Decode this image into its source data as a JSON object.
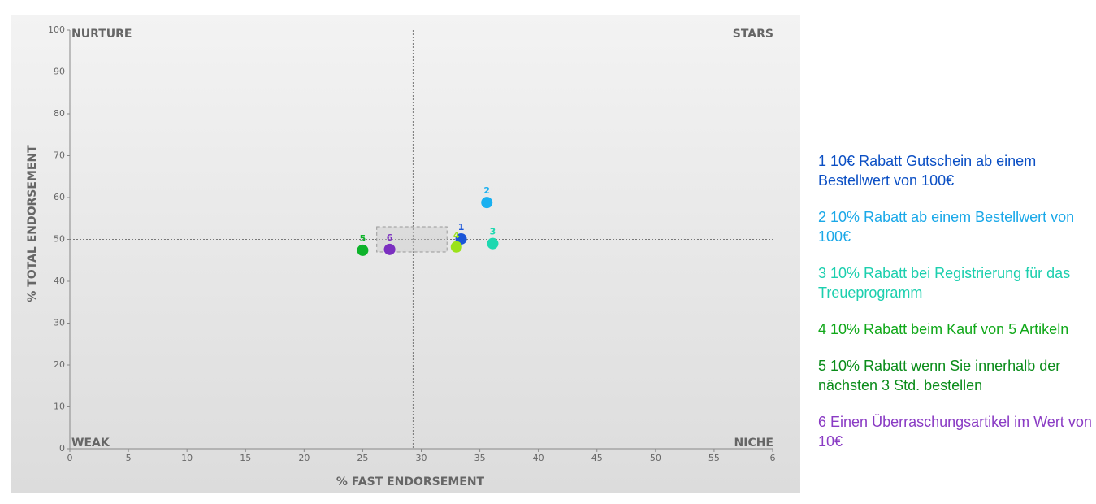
{
  "chart_data": {
    "type": "scatter",
    "x_label": "% FAST ENDORSEMENT",
    "y_label": "% TOTAL ENDORSEMENT",
    "quadrants": {
      "top_left": "NURTURE",
      "top_right": "STARS",
      "bottom_left": "WEAK",
      "bottom_right": "NICHE"
    },
    "xlim": [
      0,
      60
    ],
    "ylim": [
      0,
      100
    ],
    "xticks": [
      0,
      5,
      10,
      15,
      20,
      25,
      30,
      35,
      40,
      45,
      50,
      55,
      {
        "value": 60,
        "label": "6"
      }
    ],
    "yticks": [
      0,
      10,
      20,
      30,
      40,
      50,
      60,
      70,
      80,
      90,
      100
    ],
    "vline": 29.3,
    "hline": 50,
    "highlight": {
      "x": [
        26.2,
        32.2
      ],
      "y": [
        47,
        53
      ]
    },
    "series": [
      {
        "name": "1",
        "label": "10€ Rabatt Gutschein ab einem Bestellwert von 100€",
        "color": "#1a55d8",
        "text_color": "#0b4fc4",
        "x": [
          33.4
        ],
        "values": [
          50.1
        ]
      },
      {
        "name": "2",
        "label": "10% Rabatt ab einem Bestellwert von 100€",
        "color": "#1ab0f0",
        "text_color": "#1aa8e8",
        "x": [
          35.6
        ],
        "values": [
          58.8
        ]
      },
      {
        "name": "3",
        "label": "10% Rabatt bei Registrierung für das Treueprogramm",
        "color": "#1ed8b0",
        "text_color": "#1ccfae",
        "x": [
          36.1
        ],
        "values": [
          49.0
        ]
      },
      {
        "name": "4",
        "label": "10% Rabatt beim Kauf von 5 Artikeln",
        "color": "#9be21a",
        "text_color": "#11a81a",
        "x": [
          33.0
        ],
        "values": [
          48.2
        ]
      },
      {
        "name": "5",
        "label": "10% Rabatt wenn Sie innerhalb der nächsten 3 Std. bestellen",
        "color": "#0db32a",
        "text_color": "#0a8c1a",
        "x": [
          25.0
        ],
        "values": [
          47.4
        ]
      },
      {
        "name": "6",
        "label": "Einen Überraschungsartikel im Wert von 10€",
        "color": "#7b2fc0",
        "text_color": "#8a3bc4",
        "x": [
          27.3
        ],
        "values": [
          47.6
        ]
      }
    ]
  }
}
